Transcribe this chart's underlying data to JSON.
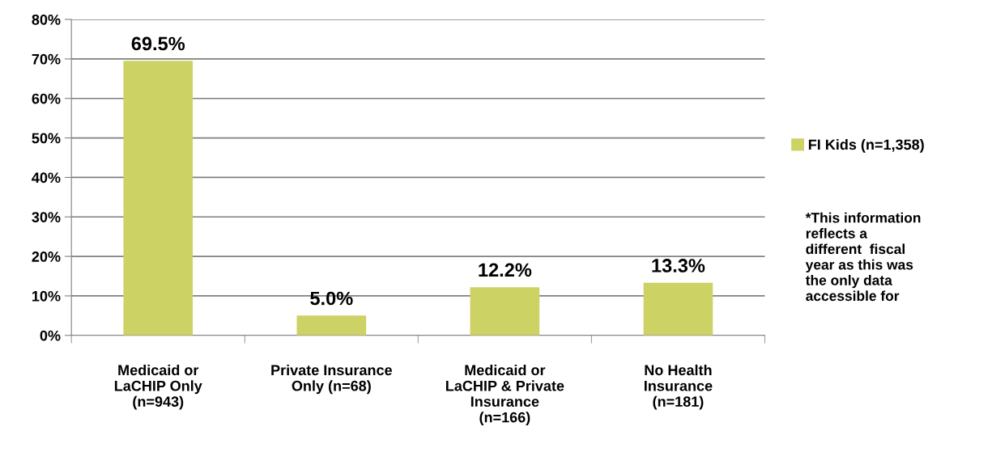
{
  "chart_data": {
    "type": "bar",
    "categories": [
      "Medicaid or\nLaCHIP Only\n(n=943)",
      "Private Insurance\nOnly (n=68)",
      "Medicaid or\nLaCHIP & Private\nInsurance\n(n=166)",
      "No Health\nInsurance\n(n=181)"
    ],
    "series": [
      {
        "name": "FI Kids (n=1,358)",
        "color": "#ccd264",
        "values": [
          69.5,
          5.0,
          12.2,
          13.3
        ],
        "value_labels": [
          "69.5%",
          "5.0%",
          "12.2%",
          "13.3%"
        ]
      }
    ],
    "ylim": [
      0,
      80
    ],
    "yticks": [
      {
        "value": 0,
        "label": "0%"
      },
      {
        "value": 10,
        "label": "10%"
      },
      {
        "value": 20,
        "label": "20%"
      },
      {
        "value": 30,
        "label": "30%"
      },
      {
        "value": 40,
        "label": "40%"
      },
      {
        "value": 50,
        "label": "50%"
      },
      {
        "value": 60,
        "label": "60%"
      },
      {
        "value": 70,
        "label": "70%"
      },
      {
        "value": 80,
        "label": "80%"
      }
    ],
    "grid": "y",
    "legend": "right",
    "annotations": [
      "*This information\nreflects a\ndifferent  fiscal\nyear as this was\nthe only data\naccessible for"
    ]
  }
}
